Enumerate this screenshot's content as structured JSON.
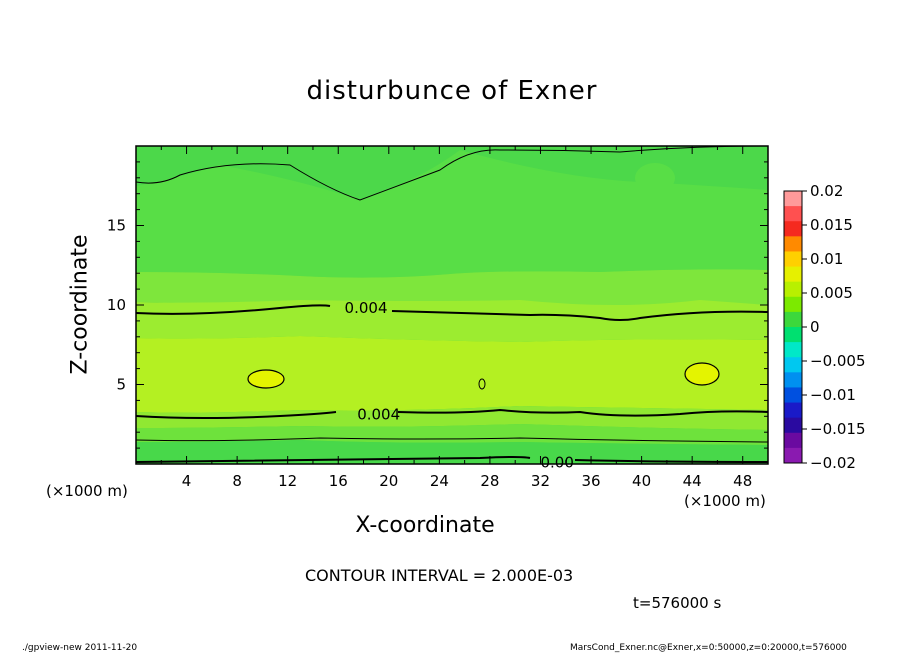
{
  "chart_data": {
    "type": "contour",
    "title": "disturbunce of Exner",
    "xlabel": "X-coordinate",
    "ylabel": "Z-coordinate",
    "x_unit_left": "(×1000 m)",
    "x_unit_right": "(×1000 m)",
    "xlim": [
      0,
      50
    ],
    "ylim": [
      0,
      20
    ],
    "x_ticks": [
      4,
      8,
      12,
      16,
      20,
      24,
      28,
      32,
      36,
      40,
      44,
      48
    ],
    "y_ticks": [
      5,
      10,
      15
    ],
    "contour_labels": [
      {
        "text": "0.004",
        "x": 16.5,
        "z": 9.8
      },
      {
        "text": "0.004",
        "x": 17.5,
        "z": 3.1
      },
      {
        "text": "0.00",
        "x": 32,
        "z": 0.1
      }
    ],
    "colorbar": {
      "ticks": [
        "0.02",
        "0.015",
        "0.01",
        "0.005",
        "0",
        "−0.005",
        "−0.01",
        "−0.015",
        "−0.02"
      ],
      "colors": [
        "#ff9a9a",
        "#ff5050",
        "#f52a1f",
        "#ff8a00",
        "#ffd000",
        "#e6f000",
        "#b8f000",
        "#7cea00",
        "#3cd83c",
        "#00e070",
        "#00e8c8",
        "#00c8f0",
        "#0090f0",
        "#0050e0",
        "#1a1ac8",
        "#2a0aa0",
        "#6a0aa0",
        "#8a1ab0"
      ]
    },
    "contour_interval": "CONTOUR INTERVAL = 2.000E-03",
    "time": "t=576000 s"
  },
  "footer": {
    "left": "./gpview-new   2011-11-20",
    "right": "MarsCond_Exner.nc@Exner,x=0:50000,z=0:20000,t=576000"
  }
}
